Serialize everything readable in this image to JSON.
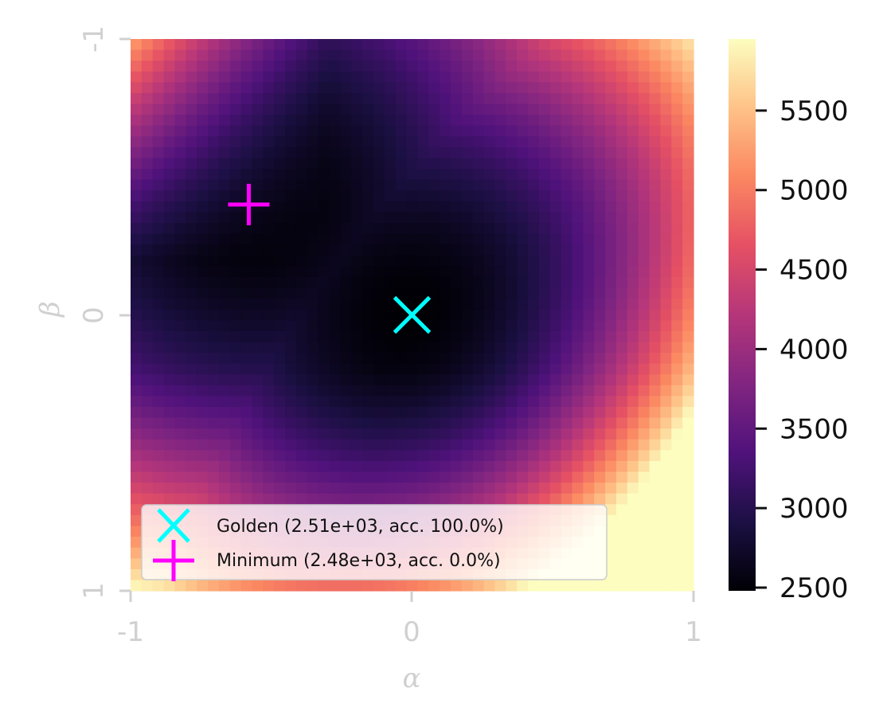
{
  "chart_data": {
    "type": "heatmap",
    "title": "",
    "xlabel": "α",
    "ylabel": "β",
    "x_ticks": [
      "-1",
      "0",
      "1"
    ],
    "y_ticks": [
      "-1",
      "0",
      "1"
    ],
    "xlim": [
      -1,
      1
    ],
    "ylim": [
      -1,
      1
    ],
    "y_inverted": true,
    "grid": false,
    "colormap": "magma",
    "grid_resolution": 51,
    "colorbar": {
      "range": [
        2480,
        5950
      ],
      "ticks": [
        2500,
        3000,
        3500,
        4000,
        4500,
        5000,
        5500
      ],
      "tick_labels": [
        "2500",
        "3000",
        "3500",
        "4000",
        "4500",
        "5000",
        "5500"
      ]
    },
    "surface_samples": [
      {
        "alpha": -1,
        "beta": -1,
        "value": 5100
      },
      {
        "alpha": 0,
        "beta": -1,
        "value": 3050
      },
      {
        "alpha": 1,
        "beta": -1,
        "value": 4600
      },
      {
        "alpha": -1,
        "beta": 0,
        "value": 2600
      },
      {
        "alpha": -0.55,
        "beta": -0.4,
        "value": 2480
      },
      {
        "alpha": 0,
        "beta": 0,
        "value": 2510
      },
      {
        "alpha": 1,
        "beta": 0,
        "value": 4500
      },
      {
        "alpha": -1,
        "beta": 1,
        "value": 4300
      },
      {
        "alpha": 0,
        "beta": 1,
        "value": 4150
      },
      {
        "alpha": 1,
        "beta": 1,
        "value": 5950
      }
    ],
    "markers": [
      {
        "name": "golden",
        "alpha": 0.0,
        "beta": 0.0,
        "symbol": "x",
        "color": "#00ffff",
        "legend": "Golden (2.51e+03, acc. 100.0%)"
      },
      {
        "name": "minimum",
        "alpha": -0.58,
        "beta": -0.4,
        "symbol": "+",
        "color": "#ff00ff",
        "legend": "Minimum (2.48e+03, acc. 0.0%)"
      }
    ],
    "legend_position": "lower-left"
  }
}
